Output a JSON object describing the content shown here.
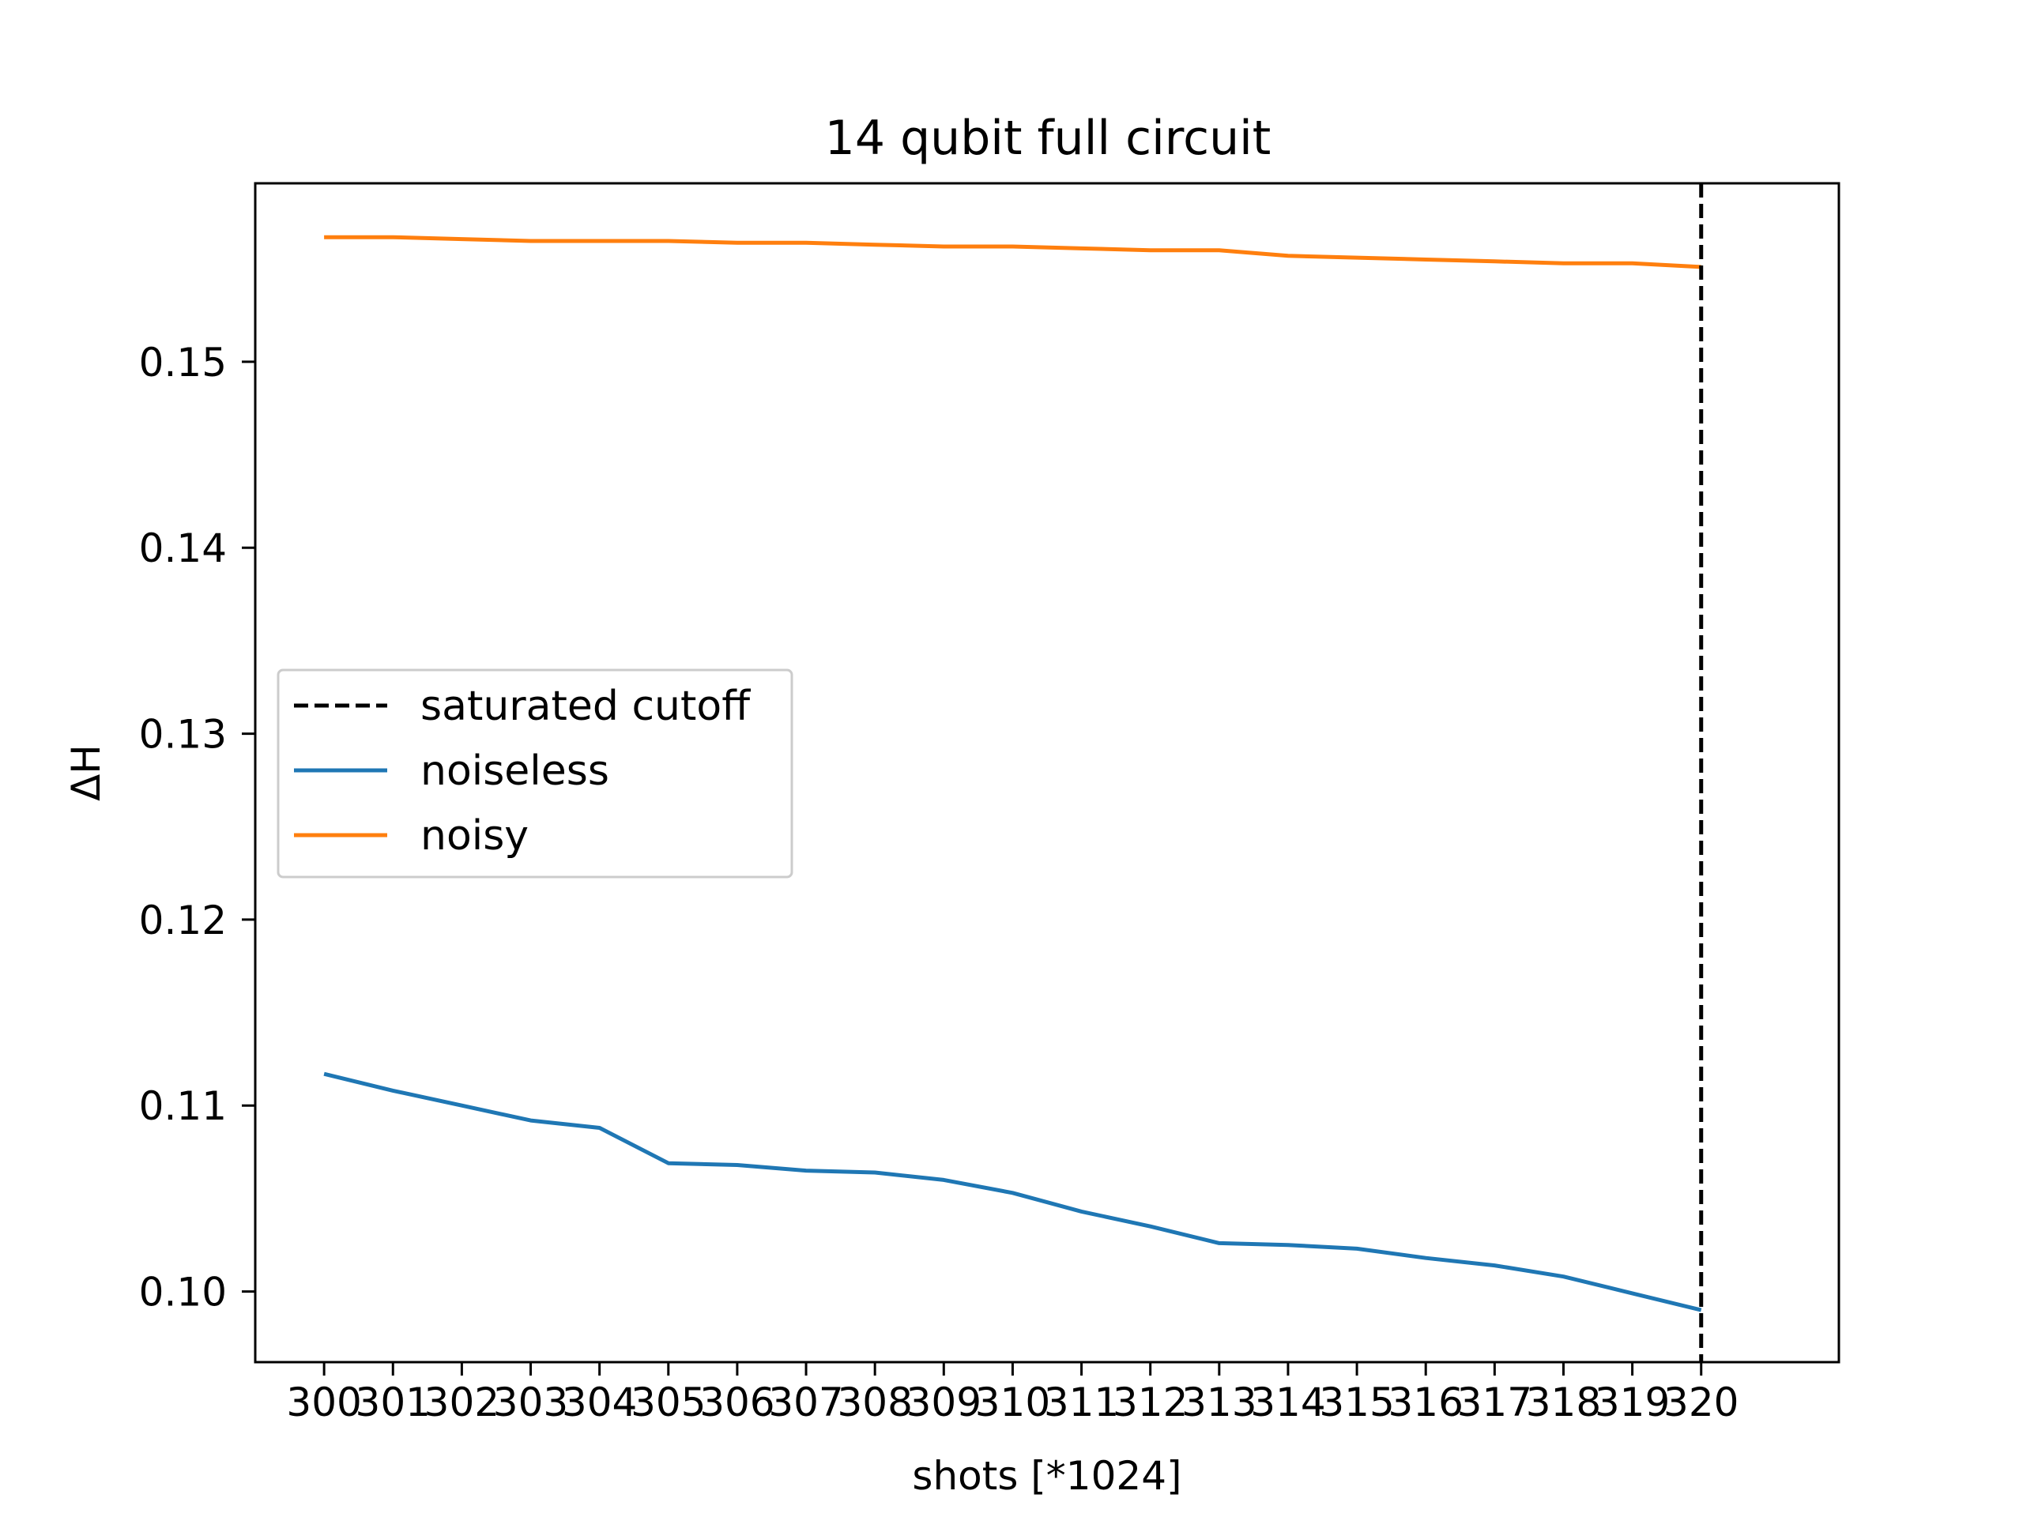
{
  "chart_data": {
    "type": "line",
    "title": "14 qubit full circuit",
    "xlabel": "shots [*1024]",
    "ylabel": "ΔH",
    "xlim": [
      299,
      322
    ],
    "ylim": [
      0.0962,
      0.1596
    ],
    "x_ticks": [
      300,
      301,
      302,
      303,
      304,
      305,
      306,
      307,
      308,
      309,
      310,
      311,
      312,
      313,
      314,
      315,
      316,
      317,
      318,
      319,
      320
    ],
    "y_ticks": [
      0.1,
      0.11,
      0.12,
      0.13,
      0.14,
      0.15
    ],
    "y_tick_labels": [
      "0.10",
      "0.11",
      "0.12",
      "0.13",
      "0.14",
      "0.15"
    ],
    "grid": false,
    "legend_position": "center-left",
    "x": [
      300,
      301,
      302,
      303,
      304,
      305,
      306,
      307,
      308,
      309,
      310,
      311,
      312,
      313,
      314,
      315,
      316,
      317,
      318,
      319,
      320
    ],
    "series": [
      {
        "name": "noiseless",
        "color": "#1f77b4",
        "values": [
          0.1117,
          0.1108,
          0.11,
          0.1092,
          0.1088,
          0.1069,
          0.1068,
          0.1065,
          0.1064,
          0.106,
          0.1053,
          0.1043,
          0.1035,
          0.1026,
          0.1025,
          0.1023,
          0.1018,
          0.1014,
          0.1008,
          0.0999,
          0.099
        ]
      },
      {
        "name": "noisy",
        "color": "#ff7f0e",
        "values": [
          0.1567,
          0.1567,
          0.1566,
          0.1565,
          0.1565,
          0.1565,
          0.1564,
          0.1564,
          0.1563,
          0.1562,
          0.1562,
          0.1561,
          0.156,
          0.156,
          0.1557,
          0.1556,
          0.1555,
          0.1554,
          0.1553,
          0.1553,
          0.1551
        ]
      }
    ],
    "vlines": [
      {
        "name": "saturated cutoff",
        "x": 320,
        "color": "#000000",
        "style": "dashed"
      }
    ],
    "legend": [
      {
        "label": "saturated cutoff",
        "color": "#000000",
        "style": "dashed"
      },
      {
        "label": "noiseless",
        "color": "#1f77b4",
        "style": "solid"
      },
      {
        "label": "noisy",
        "color": "#ff7f0e",
        "style": "solid"
      }
    ]
  }
}
